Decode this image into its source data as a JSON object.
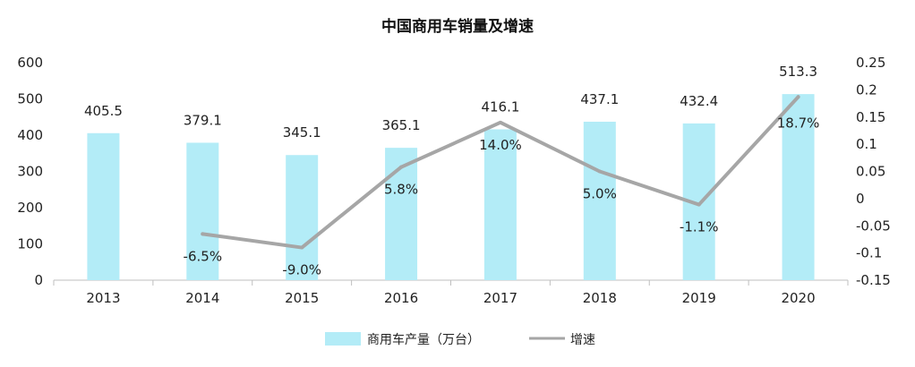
{
  "chart_data": {
    "type": "bar",
    "title": "中国商用车销量及增速",
    "categories": [
      "2013",
      "2014",
      "2015",
      "2016",
      "2017",
      "2018",
      "2019",
      "2020"
    ],
    "series": [
      {
        "name": "商用车产量（万台）",
        "type": "bar",
        "axis": "left",
        "color": "#b3ecf7",
        "values": [
          405.5,
          379.1,
          345.1,
          365.1,
          416.1,
          437.1,
          432.4,
          513.3
        ],
        "labels": [
          "405.5",
          "379.1",
          "345.1",
          "365.1",
          "416.1",
          "437.1",
          "432.4",
          "513.3"
        ]
      },
      {
        "name": "增速",
        "type": "line",
        "axis": "right",
        "color": "#a6a6a6",
        "values": [
          null,
          -0.065,
          -0.09,
          0.058,
          0.14,
          0.05,
          -0.011,
          0.187
        ],
        "labels": [
          "",
          "-6.5%",
          "-9.0%",
          "5.8%",
          "14.0%",
          "5.0%",
          "-1.1%",
          "18.7%"
        ]
      }
    ],
    "y_left": {
      "min": 0,
      "max": 600,
      "ticks": [
        "0",
        "100",
        "200",
        "300",
        "400",
        "500",
        "600"
      ]
    },
    "y_right": {
      "min": -0.15,
      "max": 0.25,
      "ticks": [
        "-0.15",
        "-0.1",
        "-0.05",
        "0",
        "0.05",
        "0.1",
        "0.15",
        "0.2",
        "0.25"
      ]
    },
    "grid": false,
    "legend_position": "bottom"
  }
}
